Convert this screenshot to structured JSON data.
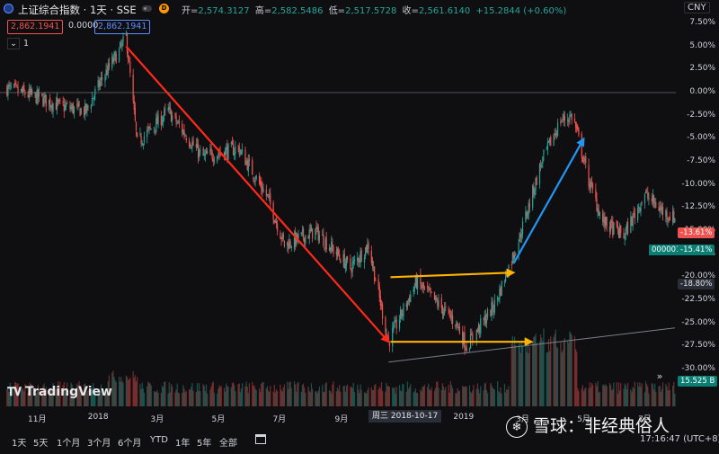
{
  "header": {
    "symbol_title": "上证综合指数 · 1天 · SSE",
    "d_badge": "D",
    "open_label": "开=",
    "open_val": "2,574.3127",
    "high_label": "高=",
    "high_val": "2,582.5486",
    "low_label": "低=",
    "low_val": "2,517.5728",
    "close_label": "收=",
    "close_val": "2,561.6140",
    "change_val": "+15.2844 (+0.60%)",
    "currency": "CNY"
  },
  "compare": {
    "price_red": "2,862.1941",
    "price_mid": "0.0000",
    "price_blue": "2,862.1941",
    "collapse_count": "1"
  },
  "colors": {
    "up": "#26a69a",
    "down": "#ef5350",
    "red_arrow": "#ff2a1a",
    "blue_arrow": "#2196f3",
    "yellow_arrow": "#ffb300"
  },
  "chart_data": {
    "type": "candlestick",
    "series": [
      {
        "name": "上证综合指数",
        "unit": "% change"
      }
    ],
    "y_ticks": [
      "7.50%",
      "5.00%",
      "2.50%",
      "0.00%",
      "-2.50%",
      "-5.00%",
      "-7.50%",
      "-10.00%",
      "-12.50%",
      "-15.00%",
      "-17.50%",
      "-20.00%",
      "-22.50%",
      "-25.00%",
      "-27.50%",
      "-30.00%"
    ],
    "x_ticks": [
      "11月",
      "2018",
      "3月",
      "5月",
      "7月",
      "9月",
      "2019",
      "3月",
      "5月",
      "7月"
    ],
    "x_crosshair_label": "周三 2018-10-17",
    "price_tags": {
      "last": "-13.61%",
      "sym_value": "-15.41%",
      "sym_name": "000001",
      "level": "-18.80%",
      "volume": "15.525 B"
    },
    "ylim": [
      -30,
      7.5
    ],
    "keypoints": [
      {
        "d": "2017-10-01",
        "y": 0.5
      },
      {
        "d": "2017-11-01",
        "y": -0.5
      },
      {
        "d": "2017-11-25",
        "y": -1.5
      },
      {
        "d": "2017-12-20",
        "y": -2.0
      },
      {
        "d": "2018-01-05",
        "y": 1.5
      },
      {
        "d": "2018-01-22",
        "y": 4.5
      },
      {
        "d": "2018-01-29",
        "y": 6.0
      },
      {
        "d": "2018-02-09",
        "y": -5.5
      },
      {
        "d": "2018-03-12",
        "y": -2.0
      },
      {
        "d": "2018-04-15",
        "y": -7.0
      },
      {
        "d": "2018-05-21",
        "y": -6.0
      },
      {
        "d": "2018-06-20",
        "y": -11.5
      },
      {
        "d": "2018-07-06",
        "y": -16.5
      },
      {
        "d": "2018-08-06",
        "y": -15.0
      },
      {
        "d": "2018-09-10",
        "y": -19.0
      },
      {
        "d": "2018-09-28",
        "y": -16.5
      },
      {
        "d": "2018-10-18",
        "y": -27.0
      },
      {
        "d": "2018-11-15",
        "y": -20.5
      },
      {
        "d": "2018-12-25",
        "y": -25.0
      },
      {
        "d": "2019-01-04",
        "y": -27.5
      },
      {
        "d": "2019-02-01",
        "y": -23.0
      },
      {
        "d": "2019-02-25",
        "y": -16.0
      },
      {
        "d": "2019-03-20",
        "y": -7.5
      },
      {
        "d": "2019-04-08",
        "y": -3.0
      },
      {
        "d": "2019-04-20",
        "y": -2.5
      },
      {
        "d": "2019-05-06",
        "y": -9.5
      },
      {
        "d": "2019-05-20",
        "y": -14.0
      },
      {
        "d": "2019-06-10",
        "y": -15.5
      },
      {
        "d": "2019-07-01",
        "y": -11.0
      },
      {
        "d": "2019-07-20",
        "y": -13.0
      },
      {
        "d": "2019-07-31",
        "y": -13.6
      }
    ],
    "annotations": [
      {
        "type": "arrow",
        "color": "red",
        "from": {
          "d": "2018-01-29",
          "y": 5.0
        },
        "to": {
          "d": "2018-10-18",
          "y": -27.0
        }
      },
      {
        "type": "arrow",
        "color": "yellow",
        "from": {
          "d": "2018-10-20",
          "y": -20.0
        },
        "to": {
          "d": "2019-02-20",
          "y": -19.5
        }
      },
      {
        "type": "arrow",
        "color": "yellow",
        "from": {
          "d": "2018-10-20",
          "y": -27.0
        },
        "to": {
          "d": "2019-03-10",
          "y": -27.0
        }
      },
      {
        "type": "arrow",
        "color": "blue",
        "from": {
          "d": "2019-02-20",
          "y": -18.5
        },
        "to": {
          "d": "2019-05-01",
          "y": -5.0
        }
      },
      {
        "type": "trendline",
        "color": "gray",
        "from": {
          "d": "2018-10-18",
          "y": -29.2
        },
        "to": {
          "d": "2019-07-31",
          "y": -25.5
        }
      },
      {
        "type": "hline",
        "color": "gray",
        "y": 0.0
      }
    ]
  },
  "logo": {
    "text": "TradingView"
  },
  "bottom": {
    "timeframes": [
      "1天",
      "5天",
      "1个月",
      "3个月",
      "6个月",
      "YTD",
      "1年",
      "5年",
      "全部"
    ],
    "time": "17:16:47 (UTC+8)"
  },
  "watermark": {
    "text": "雪球：非经典俗人"
  }
}
